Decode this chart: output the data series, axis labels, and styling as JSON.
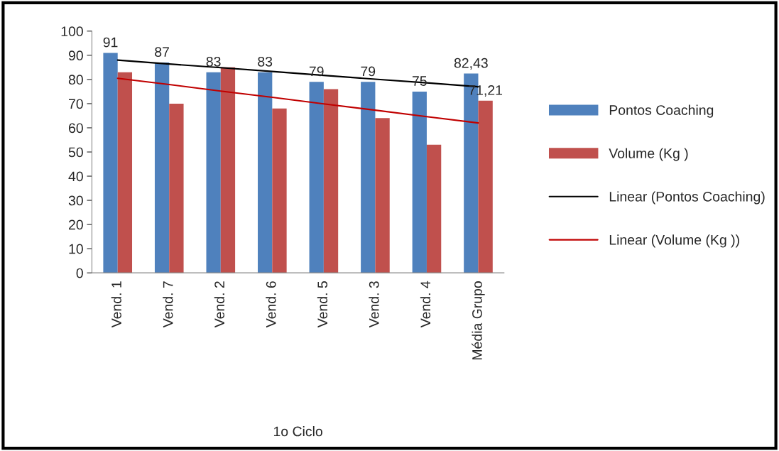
{
  "chart_data": {
    "type": "bar",
    "categories": [
      "Vend. 1",
      "Vend. 7",
      "Vend. 2",
      "Vend. 6",
      "Vend. 5",
      "Vend. 3",
      "Vend. 4",
      "Média Grupo"
    ],
    "xlabel": "1o Ciclo",
    "series": [
      {
        "name": "Pontos Coaching",
        "color": "#4f81bd",
        "values": [
          91,
          87,
          83,
          83,
          79,
          79,
          75,
          82.43
        ],
        "value_labels": [
          "91",
          "87",
          "83",
          "83",
          "79",
          "79",
          "75",
          "82,43"
        ]
      },
      {
        "name": "Volume (Kg )",
        "color": "#c0504d",
        "values": [
          83,
          70,
          85,
          68,
          76,
          64,
          53,
          71.21
        ],
        "value_labels": [
          null,
          null,
          null,
          null,
          null,
          null,
          null,
          "71,21"
        ]
      },
      {
        "name": "Linear (Pontos Coaching)",
        "type": "line",
        "color": "#000000",
        "values": [
          88,
          86.4,
          84.9,
          83.3,
          81.7,
          80.1,
          78.6,
          77
        ]
      },
      {
        "name": "Linear (Volume (Kg ))",
        "type": "line",
        "color": "#c00000",
        "values": [
          80.5,
          77.9,
          75.2,
          72.6,
          69.9,
          67.3,
          64.6,
          62
        ]
      }
    ],
    "ylim": [
      0,
      100
    ],
    "yticks": [
      0,
      10,
      20,
      30,
      40,
      50,
      60,
      70,
      80,
      90,
      100
    ],
    "grid": false,
    "legend": "right"
  }
}
